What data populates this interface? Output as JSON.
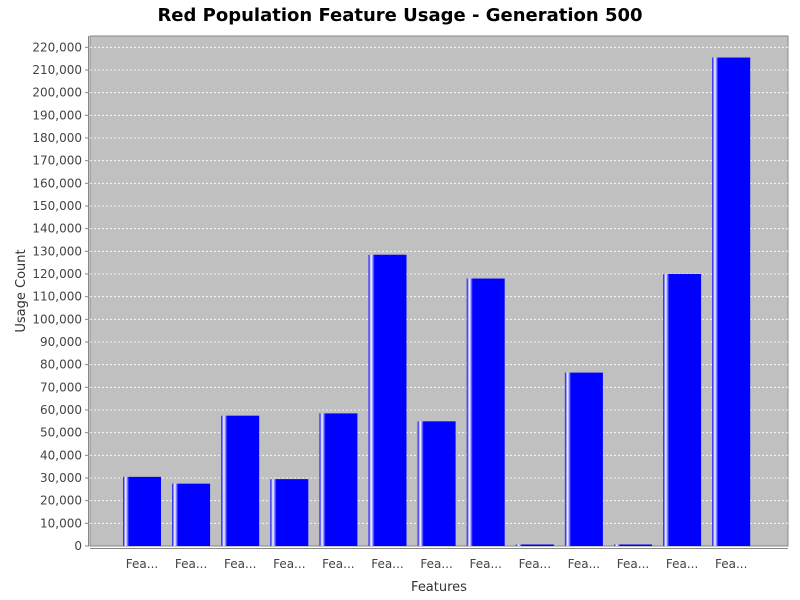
{
  "chart_data": {
    "type": "bar",
    "title": "Red Population Feature Usage - Generation 500",
    "xlabel": "Features",
    "ylabel": "Usage Count",
    "categories": [
      "Fea...",
      "Fea...",
      "Fea...",
      "Fea...",
      "Fea...",
      "Fea...",
      "Fea...",
      "Fea...",
      "Fea...",
      "Fea...",
      "Fea...",
      "Fea...",
      "Fea..."
    ],
    "values": [
      30500,
      27500,
      57500,
      29500,
      58500,
      128500,
      55000,
      118000,
      500,
      76500,
      500,
      120000,
      215500
    ],
    "ylim": [
      0,
      225000
    ],
    "yticks": [
      0,
      10000,
      20000,
      30000,
      40000,
      50000,
      60000,
      70000,
      80000,
      90000,
      100000,
      110000,
      120000,
      130000,
      140000,
      150000,
      160000,
      170000,
      180000,
      190000,
      200000,
      210000,
      220000
    ],
    "grid": true,
    "colors": {
      "bar": "#0000ff",
      "bar_highlight": "#ffffff",
      "plot_background": "#c0c0c0",
      "gridline": "#ffffff",
      "axis": "#888888"
    }
  }
}
